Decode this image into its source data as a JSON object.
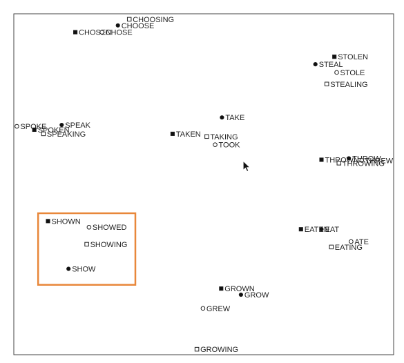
{
  "chart_data": {
    "type": "scatter",
    "title": "",
    "xlabel": "",
    "ylabel": "",
    "xlim": [
      0,
      100
    ],
    "ylim": [
      0,
      100
    ],
    "grid": false,
    "marker_legend": {
      "past_participle": "filled-square",
      "base_form": "filled-circle",
      "past_tense": "hollow-circle",
      "gerund": "hollow-square"
    },
    "highlight_box": {
      "color": "#E8873A",
      "x0": 6.4,
      "x1": 32.0,
      "y0": 20.5,
      "y1": 41.5
    },
    "cursor": {
      "x": 60.4,
      "y": 56.8
    },
    "points": [
      {
        "label": "CHOOSING",
        "marker": "hollow-square",
        "x": 30.4,
        "y": 98.4
      },
      {
        "label": "CHOOSE",
        "marker": "filled-circle",
        "x": 27.4,
        "y": 96.6
      },
      {
        "label": "CHOSEN",
        "marker": "filled-square",
        "x": 16.2,
        "y": 94.6
      },
      {
        "label": "CHOSE",
        "marker": "hollow-circle",
        "x": 23.2,
        "y": 94.6
      },
      {
        "label": "STOLEN",
        "marker": "filled-square",
        "x": 84.4,
        "y": 87.4
      },
      {
        "label": "STEAL",
        "marker": "filled-circle",
        "x": 79.4,
        "y": 85.2
      },
      {
        "label": "STOLE",
        "marker": "hollow-circle",
        "x": 85.0,
        "y": 82.8
      },
      {
        "label": "STEALING",
        "marker": "hollow-square",
        "x": 82.4,
        "y": 79.4
      },
      {
        "label": "TAKE",
        "marker": "filled-circle",
        "x": 54.8,
        "y": 69.6
      },
      {
        "label": "SPOKE",
        "marker": "hollow-circle",
        "x": 0.8,
        "y": 67.0
      },
      {
        "label": "SPEAK",
        "marker": "filled-circle",
        "x": 12.6,
        "y": 67.4
      },
      {
        "label": "SPOKEN",
        "marker": "filled-square",
        "x": 5.4,
        "y": 66.0
      },
      {
        "label": "SPEAKING",
        "marker": "hollow-square",
        "x": 7.8,
        "y": 64.8
      },
      {
        "label": "TAKEN",
        "marker": "filled-square",
        "x": 41.8,
        "y": 64.8
      },
      {
        "label": "TAKING",
        "marker": "hollow-square",
        "x": 50.8,
        "y": 64.0
      },
      {
        "label": "TOOK",
        "marker": "hollow-circle",
        "x": 53.0,
        "y": 61.6
      },
      {
        "label": "THROWN",
        "marker": "filled-square",
        "x": 81.0,
        "y": 57.2
      },
      {
        "label": "THROW",
        "marker": "filled-circle",
        "x": 88.2,
        "y": 57.6
      },
      {
        "label": "THREW",
        "marker": "hollow-circle",
        "x": 91.6,
        "y": 57.0
      },
      {
        "label": "THROWING",
        "marker": "hollow-square",
        "x": 85.6,
        "y": 56.2
      },
      {
        "label": "SHOWN",
        "marker": "filled-square",
        "x": 9.0,
        "y": 39.2
      },
      {
        "label": "SHOWED",
        "marker": "hollow-circle",
        "x": 19.8,
        "y": 37.4
      },
      {
        "label": "EATEN",
        "marker": "filled-square",
        "x": 75.6,
        "y": 36.8
      },
      {
        "label": "EAT",
        "marker": "filled-circle",
        "x": 81.0,
        "y": 36.8
      },
      {
        "label": "ATE",
        "marker": "hollow-circle",
        "x": 88.8,
        "y": 33.2
      },
      {
        "label": "SHOWING",
        "marker": "hollow-square",
        "x": 19.2,
        "y": 32.4
      },
      {
        "label": "EATING",
        "marker": "hollow-square",
        "x": 83.6,
        "y": 31.6
      },
      {
        "label": "SHOW",
        "marker": "filled-circle",
        "x": 14.4,
        "y": 25.2
      },
      {
        "label": "GROWN",
        "marker": "filled-square",
        "x": 54.6,
        "y": 19.4
      },
      {
        "label": "GROW",
        "marker": "filled-circle",
        "x": 59.8,
        "y": 17.6
      },
      {
        "label": "GREW",
        "marker": "hollow-circle",
        "x": 49.8,
        "y": 13.6
      },
      {
        "label": "GROWING",
        "marker": "hollow-square",
        "x": 48.2,
        "y": 1.6
      }
    ]
  }
}
